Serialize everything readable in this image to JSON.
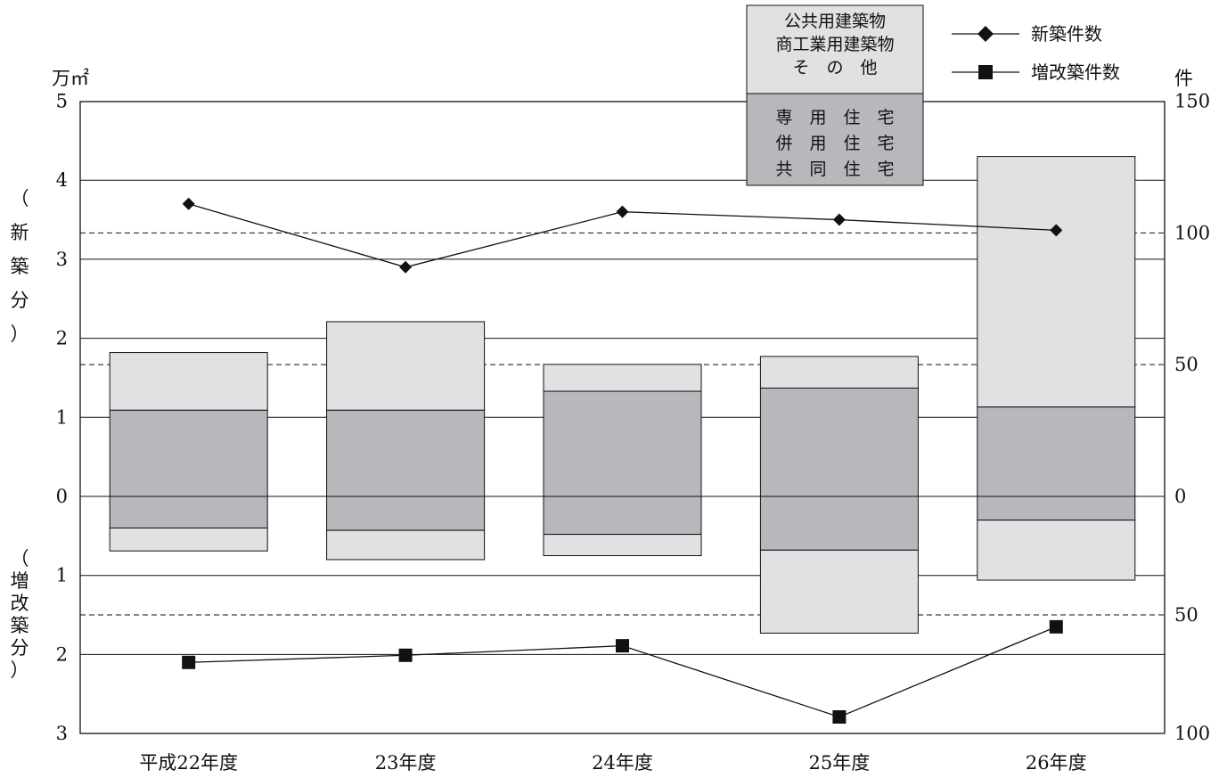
{
  "chart_data": {
    "type": "bar",
    "categories": [
      "平成22年度",
      "23年度",
      "24年度",
      "25年度",
      "26年度"
    ],
    "left_axis": {
      "unit": "万㎡",
      "upper_label": "（新築分）",
      "lower_label": "（増改築分）",
      "upper_range": [
        0,
        5
      ],
      "lower_range": [
        0,
        3
      ],
      "upper_ticks": [
        "5",
        "4",
        "3",
        "2",
        "1",
        "0"
      ],
      "lower_ticks": [
        "1",
        "2",
        "3"
      ]
    },
    "right_axis": {
      "unit": "件",
      "upper_range": [
        0,
        150
      ],
      "lower_range": [
        0,
        100
      ],
      "upper_ticks": [
        "150",
        "100",
        "50",
        "0"
      ],
      "lower_ticks": [
        "50",
        "100"
      ]
    },
    "area_series": [
      {
        "name": "専用住宅・併用住宅・共同住宅",
        "new_construction": [
          1.09,
          1.09,
          1.33,
          1.37,
          1.13
        ],
        "extension": [
          0.4,
          0.43,
          0.48,
          0.68,
          0.3
        ]
      },
      {
        "name": "公共用建築物・商工業用建築物・その他",
        "new_construction": [
          0.73,
          1.12,
          0.34,
          0.4,
          3.17
        ],
        "extension": [
          0.29,
          0.37,
          0.27,
          1.05,
          0.76
        ]
      }
    ],
    "count_series": [
      {
        "name": "新築件数",
        "marker": "diamond",
        "values": [
          111,
          87,
          108,
          105,
          101
        ]
      },
      {
        "name": "増改築件数",
        "marker": "square",
        "values": [
          70,
          67,
          63,
          93,
          55
        ]
      }
    ],
    "legend": {
      "box_upper": [
        "公共用建築物",
        "商工業用建築物",
        "そ　の　他"
      ],
      "box_lower": [
        "専　用　住　宅",
        "併　用　住　宅",
        "共　同　住　宅"
      ],
      "line_items": [
        "新築件数",
        "増改築件数"
      ]
    },
    "colors": {
      "light": "#e0e1e3",
      "dark": "#b7b8bb",
      "line": "#111111"
    },
    "grid": true
  }
}
